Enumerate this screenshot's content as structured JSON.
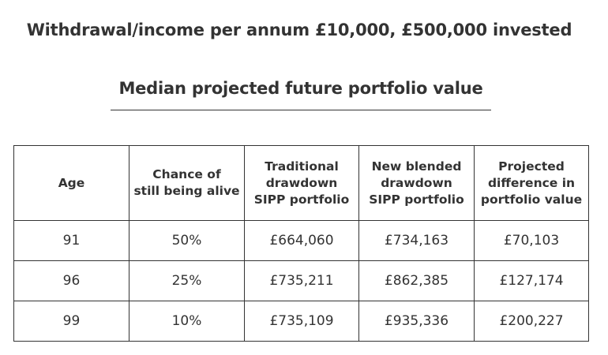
{
  "header": {
    "title": "Withdrawal/income per annum £10,000, £500,000 invested",
    "subtitle": "Median projected future portfolio value"
  },
  "table": {
    "columns": [
      "Age",
      "Chance of\nstill being alive",
      "Traditional\ndrawdown\nSIPP portfolio",
      "New blended\ndrawdown\nSIPP portfolio",
      "Projected\ndifference in\nportfolio value"
    ],
    "rows": [
      [
        "91",
        "50%",
        "£664,060",
        "£734,163",
        "£70,103"
      ],
      [
        "96",
        "25%",
        "£735,211",
        "£862,385",
        "£127,174"
      ],
      [
        "99",
        "10%",
        "£735,109",
        "£935,336",
        "£200,227"
      ]
    ]
  }
}
